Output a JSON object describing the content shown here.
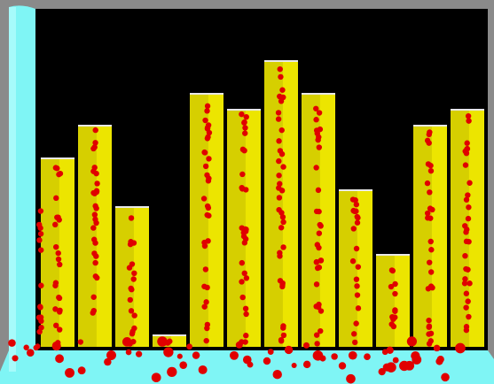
{
  "chart_data": {
    "type": "bar",
    "categories": [
      null,
      null,
      null,
      null,
      null,
      null,
      null,
      null,
      null,
      null,
      null,
      null
    ],
    "values": [
      214,
      251,
      159,
      14,
      287,
      269,
      324,
      287,
      178,
      105,
      251,
      269
    ],
    "color": "#d6cf00"
  }
}
